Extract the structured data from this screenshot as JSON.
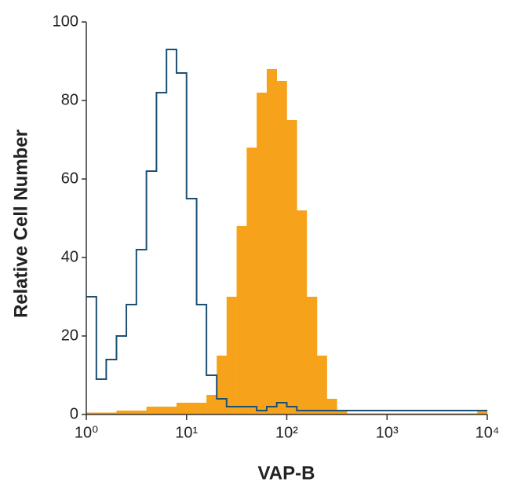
{
  "chart_data": {
    "type": "histogram",
    "xlabel": "VAP-B",
    "ylabel": "Relative Cell Number",
    "xscale": "log",
    "xlim": [
      1,
      10000
    ],
    "ylim": [
      0,
      100
    ],
    "xticks": [
      {
        "value": 1,
        "label": "10⁰"
      },
      {
        "value": 10,
        "label": "10¹"
      },
      {
        "value": 100,
        "label": "10²"
      },
      {
        "value": 1000,
        "label": "10³"
      },
      {
        "value": 10000,
        "label": "10⁴"
      }
    ],
    "yticks": [
      0,
      20,
      40,
      60,
      80,
      100
    ],
    "bins": [
      1,
      1.26,
      1.58,
      2,
      2.51,
      3.16,
      3.98,
      5.01,
      6.31,
      7.94,
      10,
      12.6,
      15.8,
      20,
      25.1,
      31.6,
      39.8,
      50.1,
      63.1,
      79.4,
      100,
      126,
      158,
      200,
      251,
      316,
      398,
      501,
      631,
      794,
      1000,
      1259,
      1585,
      1995,
      2512,
      3162,
      3981,
      5012,
      6310,
      7943,
      10000
    ],
    "series": [
      {
        "style": "filled",
        "color": "#f7a21b",
        "values": [
          0.5,
          0.5,
          0.5,
          1,
          1,
          1,
          2,
          2,
          2,
          3,
          3,
          3,
          5,
          15,
          30,
          48,
          68,
          82,
          88,
          85,
          75,
          52,
          30,
          15,
          4,
          1,
          0.3,
          0.3,
          0.3,
          0.3,
          0.3,
          0.3,
          0.3,
          0.3,
          0.3,
          0.3,
          0.3,
          0.3,
          0.3,
          1
        ]
      },
      {
        "style": "outline",
        "color": "#1d4f73",
        "values": [
          30,
          9,
          14,
          20,
          28,
          42,
          62,
          82,
          93,
          87,
          55,
          28,
          10,
          4,
          2,
          2,
          2,
          1,
          2,
          3,
          2,
          1,
          1,
          1,
          1,
          1,
          1,
          1,
          1,
          1,
          1,
          1,
          1,
          1,
          1,
          1,
          1,
          1,
          1,
          1
        ]
      }
    ]
  }
}
